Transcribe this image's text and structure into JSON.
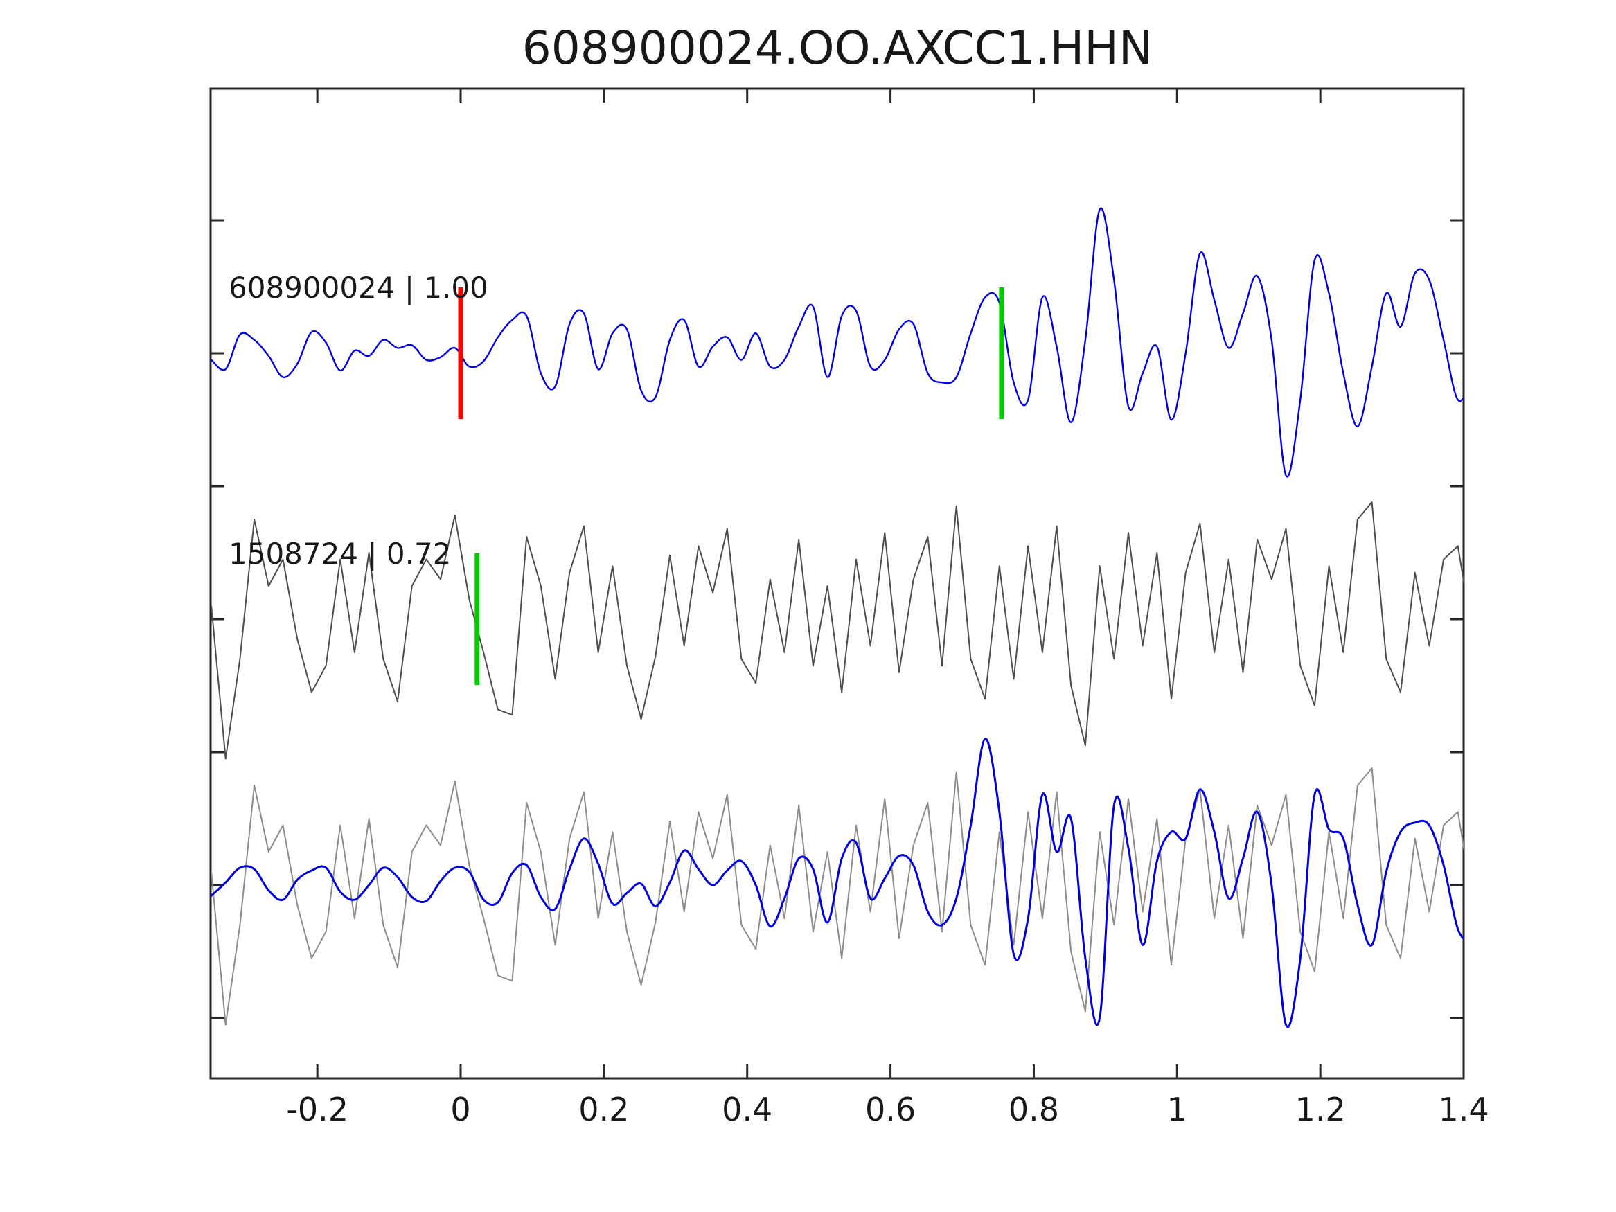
{
  "title": "608900024.OO.AXCC1.HHN",
  "colors": {
    "reference_blue": "#0000dd",
    "candidate_gray": "#4d4d4d",
    "overlay_gray": "#8c8c8c",
    "pick_red": "#ff0000",
    "pick_green": "#00cc00",
    "axis": "#262626",
    "text": "#181818"
  },
  "chart_data": {
    "type": "line",
    "title": "608900024.OO.AXCC1.HHN",
    "xlabel": "",
    "ylabel": "",
    "xlim": [
      -0.348,
      1.4
    ],
    "grid": false,
    "x_ticks": [
      {
        "value": -0.2,
        "label": "-0.2"
      },
      {
        "value": 0,
        "label": "0"
      },
      {
        "value": 0.2,
        "label": "0.2"
      },
      {
        "value": 0.4,
        "label": "0.4"
      },
      {
        "value": 0.6,
        "label": "0.6"
      },
      {
        "value": 0.8,
        "label": "0.8"
      },
      {
        "value": 1,
        "label": "1"
      },
      {
        "value": 1.2,
        "label": "1.2"
      },
      {
        "value": 1.4,
        "label": "1.4"
      }
    ],
    "annotations": [
      {
        "id": "trace1_label",
        "text": "608900024 | 1.00",
        "row": "top"
      },
      {
        "id": "trace2_label",
        "text": "1508724 | 0.72",
        "row": "middle"
      }
    ],
    "markers": [
      {
        "name": "reference-pick-red",
        "row": "top",
        "x": 0.0,
        "color": "#ff0000"
      },
      {
        "name": "reference-pick-green",
        "row": "top",
        "x": 0.755,
        "color": "#00cc00"
      },
      {
        "name": "candidate-pick-green",
        "row": "middle",
        "x": 0.023,
        "color": "#00cc00"
      }
    ],
    "series": [
      {
        "name": "reference-trace",
        "row": "top",
        "color": "#0000dd",
        "width": 2.4,
        "smooth": true,
        "x0": -0.348,
        "dx": 0.02,
        "values": [
          -0.05,
          -0.12,
          0.14,
          0.1,
          -0.02,
          -0.18,
          -0.08,
          0.16,
          0.08,
          -0.13,
          0.02,
          -0.02,
          0.1,
          0.04,
          0.06,
          -0.05,
          -0.03,
          0.04,
          -0.1,
          -0.06,
          0.12,
          0.25,
          0.28,
          -0.15,
          -0.25,
          0.22,
          0.3,
          -0.12,
          0.15,
          0.18,
          -0.28,
          -0.33,
          0.1,
          0.25,
          -0.1,
          0.05,
          0.12,
          -0.05,
          0.15,
          -0.1,
          -0.05,
          0.2,
          0.35,
          -0.18,
          0.28,
          0.32,
          -0.1,
          -0.05,
          0.18,
          0.22,
          -0.15,
          -0.22,
          -0.18,
          0.15,
          0.42,
          0.38,
          -0.22,
          -0.35,
          0.42,
          0.05,
          -0.52,
          0.1,
          1.08,
          0.55,
          -0.4,
          -0.15,
          0.05,
          -0.5,
          0.0,
          0.75,
          0.4,
          0.04,
          0.3,
          0.58,
          0.1,
          -0.92,
          -0.35,
          0.7,
          0.45,
          -0.15,
          -0.55,
          -0.1,
          0.45,
          0.2,
          0.6,
          0.55,
          0.1,
          -0.35,
          -0.2
        ]
      },
      {
        "name": "candidate-trace",
        "row": "middle",
        "color": "#4d4d4d",
        "width": 2.0,
        "smooth": false,
        "x0": -0.348,
        "dx": 0.02,
        "values": [
          0.1,
          -1.05,
          -0.3,
          0.75,
          0.25,
          0.45,
          -0.15,
          -0.55,
          -0.35,
          0.45,
          -0.25,
          0.5,
          -0.3,
          -0.62,
          0.25,
          0.45,
          0.3,
          0.78,
          0.15,
          -0.25,
          -0.68,
          -0.72,
          0.62,
          0.25,
          -0.45,
          0.35,
          0.7,
          -0.25,
          0.4,
          -0.35,
          -0.75,
          -0.28,
          0.48,
          -0.2,
          0.55,
          0.2,
          0.68,
          -0.3,
          -0.48,
          0.3,
          -0.25,
          0.6,
          -0.35,
          0.25,
          -0.55,
          0.45,
          -0.2,
          0.65,
          -0.4,
          0.3,
          0.62,
          -0.35,
          0.85,
          -0.3,
          -0.6,
          0.4,
          -0.45,
          0.55,
          -0.25,
          0.7,
          -0.5,
          -0.95,
          0.4,
          -0.3,
          0.65,
          -0.2,
          0.5,
          -0.6,
          0.35,
          0.72,
          -0.25,
          0.45,
          -0.4,
          0.6,
          0.3,
          0.68,
          -0.35,
          -0.65,
          0.4,
          -0.25,
          0.75,
          0.88,
          -0.3,
          -0.55,
          0.35,
          -0.2,
          0.45,
          0.55,
          -0.1
        ]
      },
      {
        "name": "overlay-candidate-trace",
        "row": "bottom",
        "color": "#8c8c8c",
        "width": 2.0,
        "smooth": false,
        "x0": -0.348,
        "dx": 0.02,
        "values_ref": "candidate-trace"
      },
      {
        "name": "overlay-aligned-reference-trace",
        "row": "bottom",
        "color": "#0000dd",
        "width": 3.0,
        "smooth": true,
        "x0": -0.348,
        "dx": 0.02,
        "values": [
          -0.08,
          0.02,
          0.13,
          0.12,
          -0.04,
          -0.11,
          0.04,
          0.11,
          0.13,
          -0.05,
          -0.11,
          0.0,
          0.13,
          0.06,
          -0.09,
          -0.12,
          0.03,
          0.13,
          0.1,
          -0.11,
          -0.13,
          0.09,
          0.15,
          -0.09,
          -0.18,
          0.12,
          0.35,
          0.16,
          -0.14,
          -0.06,
          0.01,
          -0.16,
          0.02,
          0.26,
          0.12,
          0.0,
          0.11,
          0.18,
          0.0,
          -0.31,
          -0.1,
          0.2,
          0.12,
          -0.28,
          0.2,
          0.32,
          -0.1,
          0.05,
          0.22,
          0.15,
          -0.2,
          -0.3,
          -0.1,
          0.45,
          1.1,
          0.55,
          -0.52,
          -0.25,
          0.68,
          0.25,
          0.5,
          -0.55,
          -1.0,
          0.6,
          0.28,
          -0.45,
          0.18,
          0.4,
          0.35,
          0.72,
          0.4,
          -0.1,
          0.2,
          0.55,
          0.0,
          -1.05,
          -0.55,
          0.68,
          0.42,
          0.35,
          -0.15,
          -0.45,
          0.1,
          0.4,
          0.47,
          0.45,
          0.15,
          -0.33,
          -0.45
        ]
      }
    ]
  }
}
